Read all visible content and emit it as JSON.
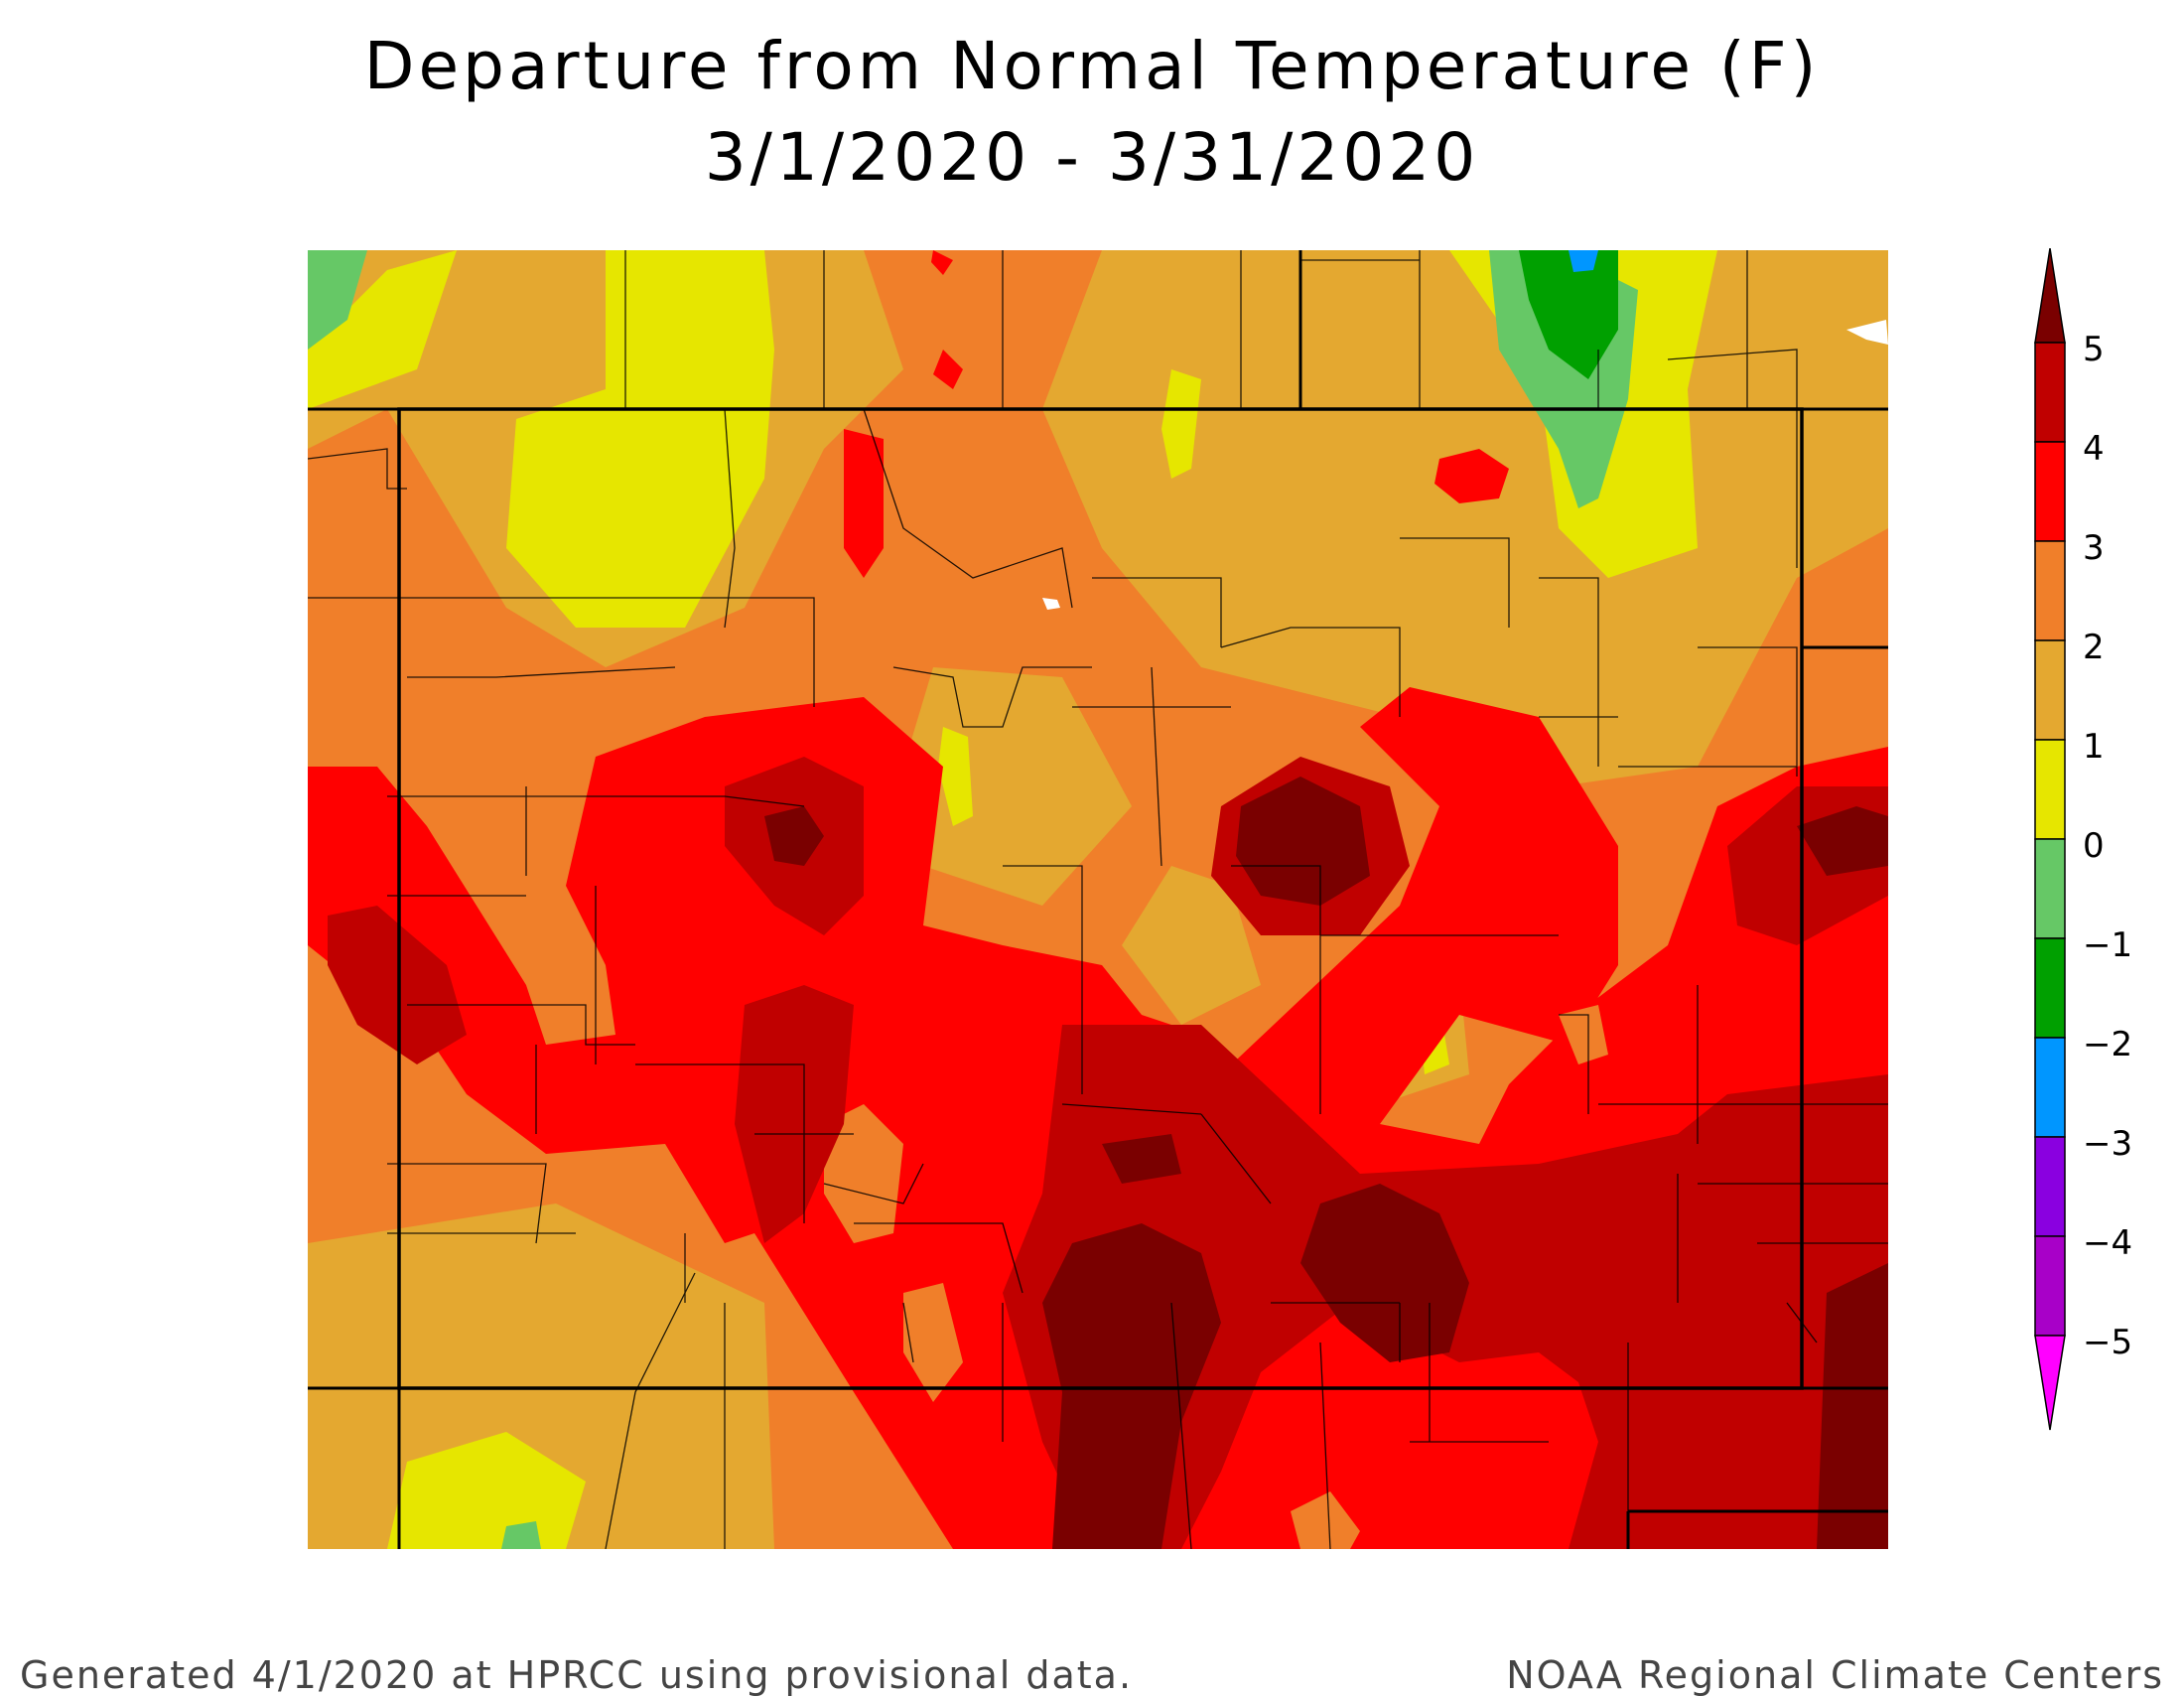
{
  "title": "Departure from Normal Temperature (F)",
  "date_range": "3/1/2020 - 3/31/2020",
  "footer": {
    "left": "Generated 4/1/2020 at HPRCC using provisional data.",
    "right": "NOAA Regional Climate Centers"
  },
  "legend": {
    "labels": [
      "5",
      "4",
      "3",
      "2",
      "1",
      "0",
      "−1",
      "−2",
      "−3",
      "−4",
      "−5"
    ],
    "bins": [
      {
        "range": "above 5",
        "color": "#7a0000"
      },
      {
        "range": "4 to 5",
        "color": "#c00000"
      },
      {
        "range": "3 to 4",
        "color": "#ff0000"
      },
      {
        "range": "2 to 3",
        "color": "#f07f2a"
      },
      {
        "range": "1 to 2",
        "color": "#e4a830"
      },
      {
        "range": "0 to 1",
        "color": "#e6e600"
      },
      {
        "range": "-1 to 0",
        "color": "#66c866"
      },
      {
        "range": "-2 to -1",
        "color": "#00a000"
      },
      {
        "range": "-3 to -2",
        "color": "#0096ff"
      },
      {
        "range": "-4 to -3",
        "color": "#8a00e0"
      },
      {
        "range": "-5 to -4",
        "color": "#a800c8"
      },
      {
        "range": "below -5",
        "color": "#ff00ff"
      }
    ]
  },
  "map": {
    "region": "Colorado",
    "county_lines": true,
    "state_border": true
  }
}
